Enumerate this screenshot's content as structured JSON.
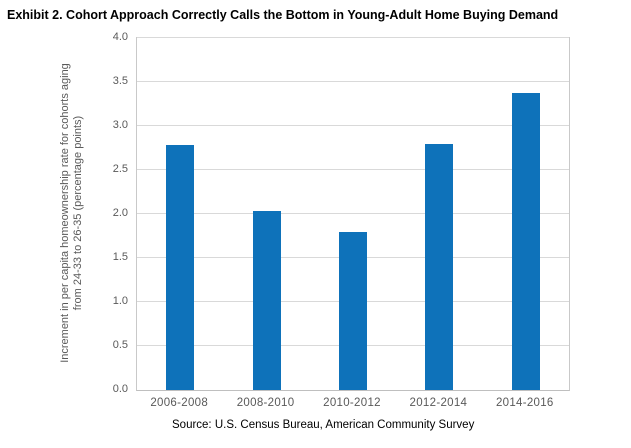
{
  "title": "Exhibit 2. Cohort Approach Correctly Calls the Bottom in Young-Adult Home Buying Demand",
  "source": "Source: U.S. Census Bureau, American Community Survey",
  "colors": {
    "bar": "#0e72ba",
    "gridline": "#d9d9d9",
    "plot_border": "#c9c9c9",
    "axis_text": "#595959",
    "title_text": "#000000"
  },
  "chart_data": {
    "type": "bar",
    "title": "Exhibit 2. Cohort Approach Correctly Calls the Bottom in Young-Adult Home Buying Demand",
    "categories": [
      "2006-2008",
      "2008-2010",
      "2010-2012",
      "2012-2014",
      "2014-2016"
    ],
    "values": [
      2.78,
      2.03,
      1.8,
      2.8,
      3.37
    ],
    "xlabel": "",
    "ylabel": "Increment in per capita homeownership rate for cohorts aging from 24-33 to 26-35 (percentage points)",
    "ylabel_lines": [
      "Increment in per capita homeownership rate for cohorts aging",
      "from 24-33 to 26-35 (percentage points)"
    ],
    "ylim": [
      0,
      4
    ],
    "ytick_step": 0.5,
    "ytick_labels": [
      "0.0",
      "0.5",
      "1.0",
      "1.5",
      "2.0",
      "2.5",
      "3.0",
      "3.5",
      "4.0"
    ],
    "grid": true,
    "legend": false,
    "bar_color": "#0e72ba",
    "annotation": "Source: U.S. Census Bureau, American Community Survey"
  }
}
